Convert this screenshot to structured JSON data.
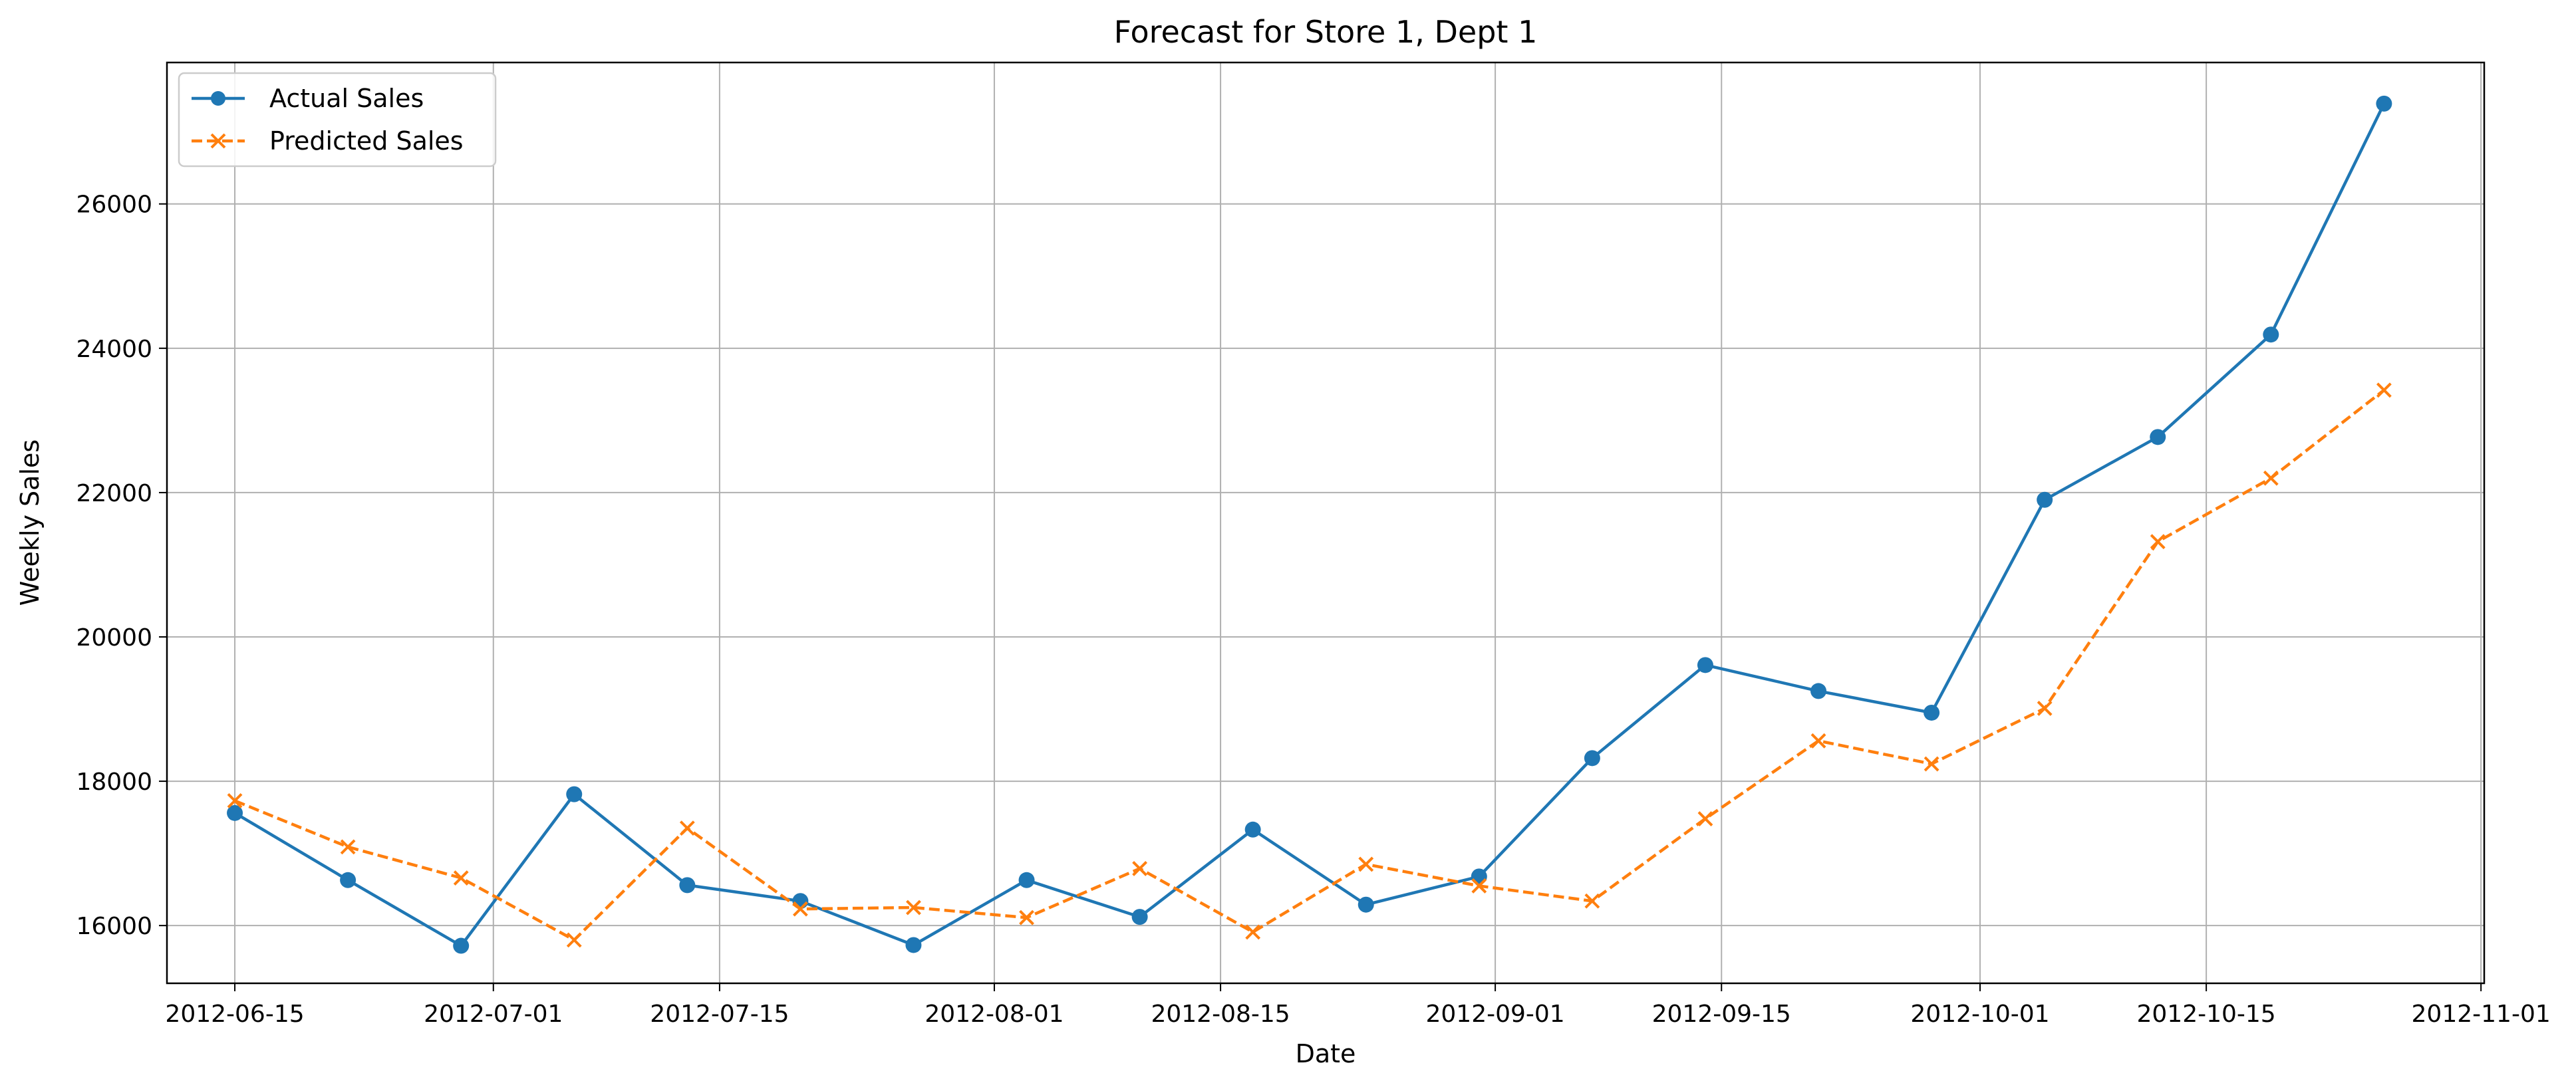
{
  "chart_data": {
    "type": "line",
    "title": "Forecast for Store 1, Dept 1",
    "xlabel": "Date",
    "ylabel": "Weekly Sales",
    "x": [
      "2012-06-15",
      "2012-06-22",
      "2012-06-29",
      "2012-07-06",
      "2012-07-13",
      "2012-07-20",
      "2012-07-27",
      "2012-08-03",
      "2012-08-10",
      "2012-08-17",
      "2012-08-24",
      "2012-08-31",
      "2012-09-07",
      "2012-09-14",
      "2012-09-21",
      "2012-09-28",
      "2012-10-05",
      "2012-10-12",
      "2012-10-19",
      "2012-10-26"
    ],
    "series": [
      {
        "name": "Actual Sales",
        "color": "#1f77b4",
        "marker": "circle",
        "linestyle": "solid",
        "values": [
          17560,
          16630,
          15720,
          17820,
          16560,
          16340,
          15730,
          16630,
          16120,
          17330,
          16290,
          16680,
          18320,
          19610,
          19250,
          18950,
          21900,
          22770,
          24190,
          27390
        ]
      },
      {
        "name": "Predicted Sales",
        "color": "#ff7f0e",
        "marker": "x",
        "linestyle": "dashed",
        "values": [
          17730,
          17090,
          16660,
          15800,
          17350,
          16230,
          16250,
          16110,
          16790,
          15910,
          16850,
          16550,
          16340,
          17480,
          18560,
          18240,
          19010,
          21320,
          22200,
          23420
        ]
      }
    ],
    "xticks": [
      "2012-06-15",
      "2012-07-01",
      "2012-07-15",
      "2012-08-01",
      "2012-08-15",
      "2012-09-01",
      "2012-09-15",
      "2012-10-01",
      "2012-10-15",
      "2012-11-01"
    ],
    "yticks": [
      16000,
      18000,
      20000,
      22000,
      24000,
      26000
    ],
    "xlim": [
      "2012-06-10.8",
      "2012-11-01.2"
    ],
    "ylim": [
      15200,
      27960
    ],
    "grid": true,
    "legend_position": "top-left"
  }
}
